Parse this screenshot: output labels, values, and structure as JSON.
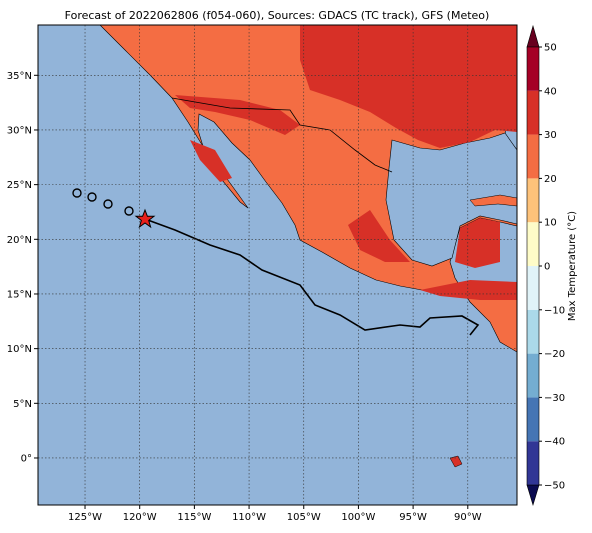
{
  "map": {
    "title": "Forecast of 2022062806 (f054-060), Sources: GDACS (TC track), GFS (Meteo)",
    "lon_range": [
      -129.3,
      -85.5
    ],
    "lat_range": [
      -4.3,
      39.6
    ],
    "lon_ticks": [
      {
        "value": -125,
        "label": "125°W"
      },
      {
        "value": -120,
        "label": "120°W"
      },
      {
        "value": -115,
        "label": "115°W"
      },
      {
        "value": -110,
        "label": "110°W"
      },
      {
        "value": -105,
        "label": "105°W"
      },
      {
        "value": -100,
        "label": "100°W"
      },
      {
        "value": -95,
        "label": "95°W"
      },
      {
        "value": -90,
        "label": "90°W"
      }
    ],
    "lat_ticks": [
      {
        "value": 35,
        "label": "35°N"
      },
      {
        "value": 30,
        "label": "30°N"
      },
      {
        "value": 25,
        "label": "25°N"
      },
      {
        "value": 20,
        "label": "20°N"
      },
      {
        "value": 15,
        "label": "15°N"
      },
      {
        "value": 10,
        "label": "10°N"
      },
      {
        "value": 5,
        "label": "5°N"
      },
      {
        "value": 0,
        "label": "0°"
      }
    ],
    "colorbar": {
      "label": "Max Temperature (°C)",
      "range": [
        -50,
        50
      ],
      "ticks": [
        {
          "value": -50,
          "label": "−50"
        },
        {
          "value": -40,
          "label": "−40"
        },
        {
          "value": -30,
          "label": "−30"
        },
        {
          "value": -20,
          "label": "−20"
        },
        {
          "value": -10,
          "label": "−10"
        },
        0,
        10,
        20,
        30,
        40,
        50
      ],
      "colors": [
        "#313695",
        "#4575b4",
        "#74add1",
        "#abd9e9",
        "#e0f3f8",
        "#fefcc8",
        "#fdc27a",
        "#f46d43",
        "#d73027",
        "#a50026"
      ]
    }
  }
}
